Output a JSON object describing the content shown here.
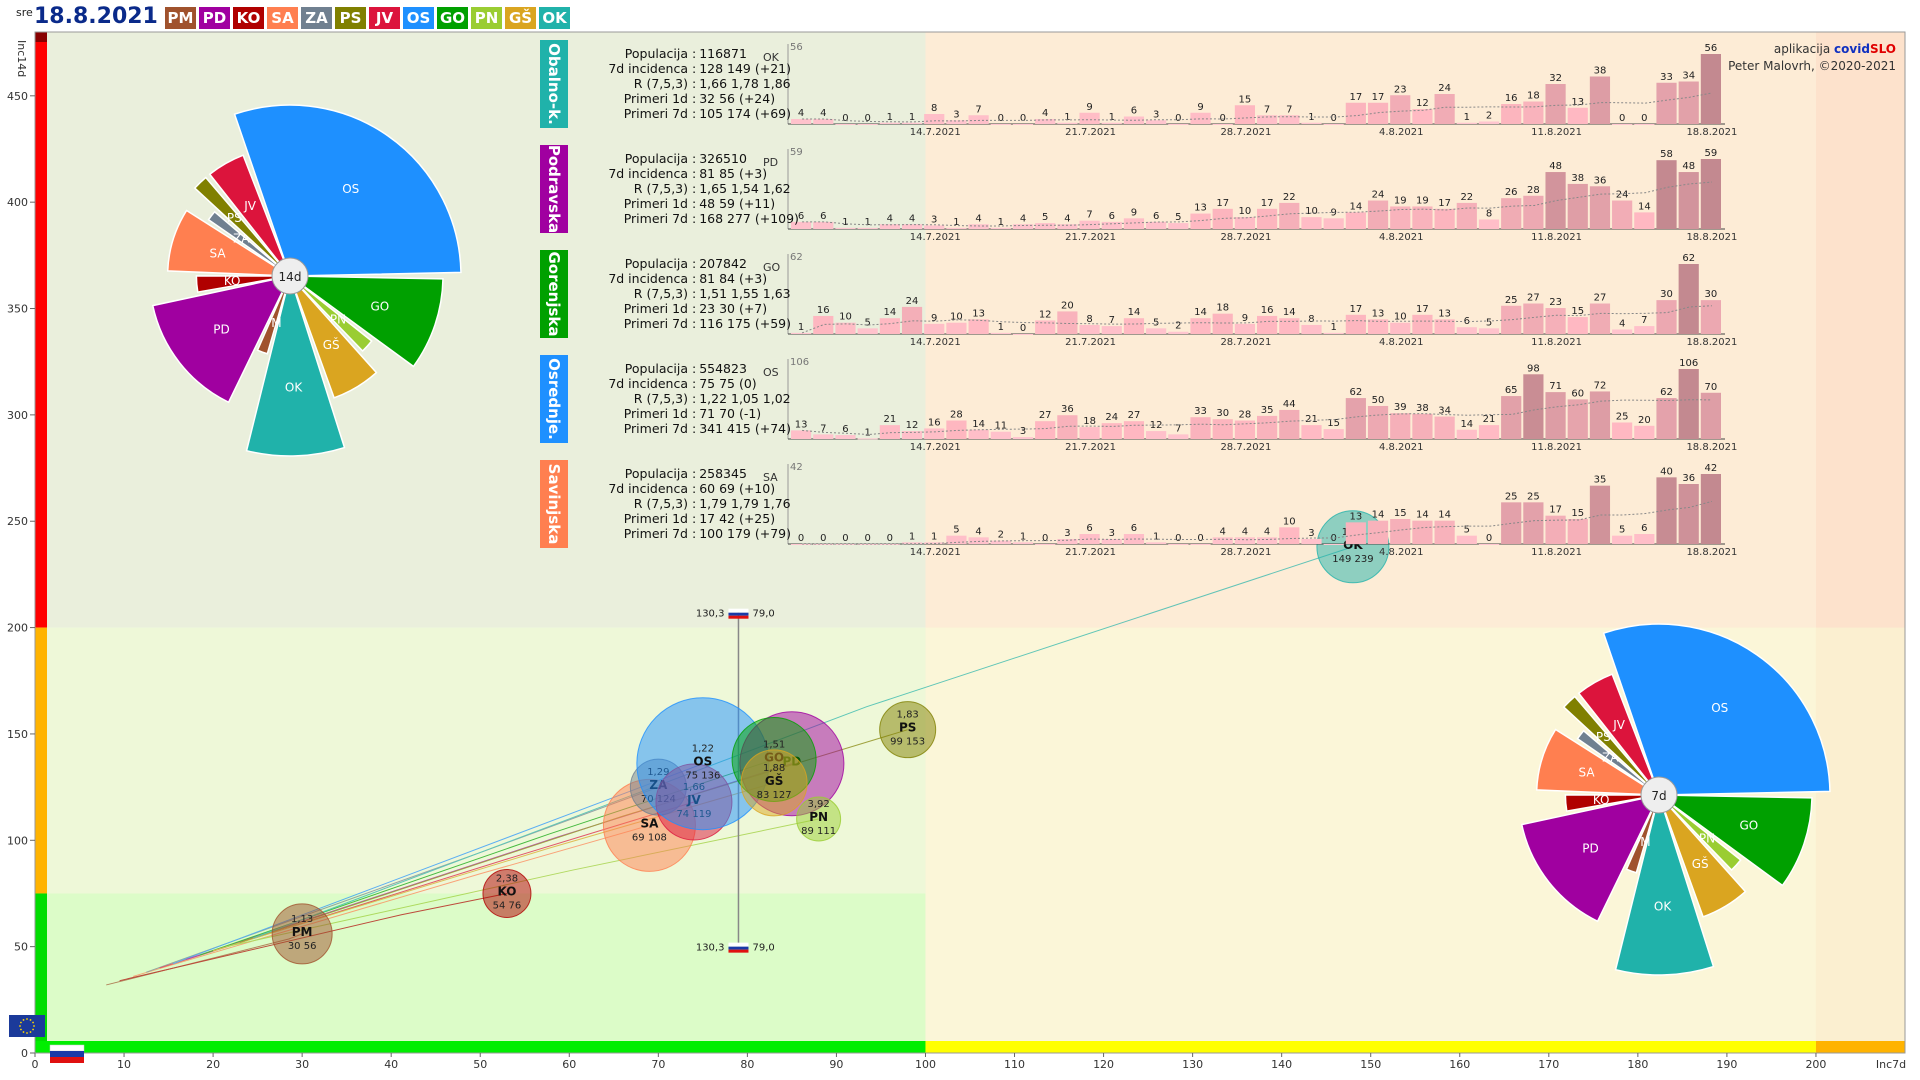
{
  "header": {
    "day_of_week": "sre",
    "date": "18.8.2021",
    "badges": [
      {
        "code": "PM",
        "color": "#a0522d"
      },
      {
        "code": "PD",
        "color": "#a000a0"
      },
      {
        "code": "KO",
        "color": "#b00000"
      },
      {
        "code": "SA",
        "color": "#ff7f50"
      },
      {
        "code": "ZA",
        "color": "#708090"
      },
      {
        "code": "PS",
        "color": "#808000"
      },
      {
        "code": "JV",
        "color": "#dc143c"
      },
      {
        "code": "OS",
        "color": "#1e90ff"
      },
      {
        "code": "GO",
        "color": "#00a000"
      },
      {
        "code": "PN",
        "color": "#9acd32"
      },
      {
        "code": "GŠ",
        "color": "#daa520"
      },
      {
        "code": "OK",
        "color": "#20b2aa"
      }
    ]
  },
  "credit": {
    "app_prefix": "aplikacija",
    "app_name_a": "covid",
    "app_name_b": "SLO",
    "author": "Peter Malovrh, ©2020-2021"
  },
  "chart_data": [
    {
      "type": "scatter",
      "title": "",
      "xlabel": "Inc7d",
      "ylabel": "Inc14d",
      "xlim": [
        0,
        210
      ],
      "ylim": [
        0,
        480
      ],
      "xticks": [
        0,
        10,
        20,
        30,
        40,
        50,
        60,
        70,
        80,
        90,
        100,
        110,
        120,
        130,
        140,
        150,
        160,
        170,
        180,
        190,
        200
      ],
      "yticks": [
        0,
        50,
        100,
        150,
        200,
        250,
        300,
        350,
        400,
        450
      ],
      "zone_colors": {
        "green": "#00ff00",
        "yellow": "#ffff00",
        "orange": "#ffb300",
        "red": "#ff0000"
      },
      "x_zones": [
        [
          0,
          100,
          "green"
        ],
        [
          100,
          200,
          "yellow"
        ],
        [
          200,
          210,
          "orange"
        ]
      ],
      "y_zones": [
        [
          0,
          75,
          "green"
        ],
        [
          75,
          200,
          "orange"
        ],
        [
          200,
          480,
          "red"
        ]
      ],
      "reference": {
        "label_left": "130,3",
        "label_right": "79,0",
        "x": 79,
        "y_low": 50,
        "y_high": 207
      },
      "bubbles": [
        {
          "code": "PM",
          "r_value": "1,13",
          "inc7": 30,
          "inc14": 56,
          "label": "30 56",
          "x": 30,
          "y": 56,
          "size": 30,
          "color": "#a0522d"
        },
        {
          "code": "KO",
          "r_value": "2,38",
          "inc7": 54,
          "inc14": 76,
          "label": "54 76",
          "x": 53,
          "y": 75,
          "size": 24,
          "color": "#b00000"
        },
        {
          "code": "SA",
          "r_value": "",
          "inc7": 69,
          "inc14": 108,
          "label": "69 108",
          "x": 69,
          "y": 107,
          "size": 46,
          "color": "#ff7f50"
        },
        {
          "code": "ZA",
          "r_value": "1,29",
          "inc7": 70,
          "inc14": 124,
          "label": "70 124",
          "x": 70,
          "y": 125,
          "size": 28,
          "color": "#708090"
        },
        {
          "code": "JV",
          "r_value": "1,66",
          "inc7": 74,
          "inc14": 119,
          "label": "74 119",
          "x": 74,
          "y": 118,
          "size": 38,
          "color": "#dc143c"
        },
        {
          "code": "OS",
          "r_value": "1,22",
          "inc7": 75,
          "inc14": 136,
          "label": "75 136",
          "x": 75,
          "y": 136,
          "size": 66,
          "color": "#1e90ff"
        },
        {
          "code": "PD",
          "r_value": "",
          "inc7": 85,
          "inc14": 136,
          "label": "",
          "x": 85,
          "y": 136,
          "size": 52,
          "color": "#a000a0"
        },
        {
          "code": "GO",
          "r_value": "1,51",
          "inc7": 81,
          "inc14": 140,
          "label": "",
          "x": 83,
          "y": 138,
          "size": 42,
          "color": "#00a000"
        },
        {
          "code": "GŠ",
          "r_value": "1,88",
          "inc7": 83,
          "inc14": 127,
          "label": "83 127",
          "x": 83,
          "y": 127,
          "size": 33,
          "color": "#daa520"
        },
        {
          "code": "PN",
          "r_value": "3,92",
          "inc7": 89,
          "inc14": 111,
          "label": "89 111",
          "x": 88,
          "y": 110,
          "size": 22,
          "color": "#9acd32"
        },
        {
          "code": "PS",
          "r_value": "1,83",
          "inc7": 99,
          "inc14": 153,
          "label": "99 153",
          "x": 98,
          "y": 152,
          "size": 28,
          "color": "#808000"
        },
        {
          "code": "OK",
          "r_value": "1,66",
          "inc7": 149,
          "inc14": 239,
          "label": "149 239",
          "x": 148,
          "y": 238,
          "size": 36,
          "color": "#20b2aa"
        }
      ]
    },
    {
      "type": "pie",
      "title": "14d",
      "slices": [
        {
          "code": "OS",
          "value": 341,
          "color": "#1e90ff"
        },
        {
          "code": "GO",
          "value": 116,
          "color": "#00a000"
        },
        {
          "code": "PN",
          "value": 30,
          "color": "#9acd32"
        },
        {
          "code": "GŠ",
          "value": 75,
          "color": "#daa520"
        },
        {
          "code": "OK",
          "value": 105,
          "color": "#20b2aa"
        },
        {
          "code": "PM",
          "value": 30,
          "color": "#a0522d"
        },
        {
          "code": "PD",
          "value": 168,
          "color": "#a000a0"
        },
        {
          "code": "KO",
          "value": 38,
          "color": "#b00000"
        },
        {
          "code": "SA",
          "value": 100,
          "color": "#ff7f50"
        },
        {
          "code": "ZA",
          "value": 25,
          "color": "#708090"
        },
        {
          "code": "PS",
          "value": 28,
          "color": "#808000"
        },
        {
          "code": "JV",
          "value": 60,
          "color": "#dc143c"
        }
      ],
      "radius_index": [
        0.95,
        0.85,
        0.58,
        0.72,
        1.0,
        0.45,
        0.78,
        0.52,
        0.68,
        0.55,
        0.72,
        0.72
      ]
    },
    {
      "type": "pie",
      "title": "7d",
      "slices": [
        {
          "code": "OS",
          "value": 341,
          "color": "#1e90ff"
        },
        {
          "code": "GO",
          "value": 116,
          "color": "#00a000"
        },
        {
          "code": "PN",
          "value": 30,
          "color": "#9acd32"
        },
        {
          "code": "GŠ",
          "value": 75,
          "color": "#daa520"
        },
        {
          "code": "OK",
          "value": 105,
          "color": "#20b2aa"
        },
        {
          "code": "PM",
          "value": 30,
          "color": "#a0522d"
        },
        {
          "code": "PD",
          "value": 168,
          "color": "#a000a0"
        },
        {
          "code": "KO",
          "value": 38,
          "color": "#b00000"
        },
        {
          "code": "SA",
          "value": 100,
          "color": "#ff7f50"
        },
        {
          "code": "ZA",
          "value": 25,
          "color": "#708090"
        },
        {
          "code": "PS",
          "value": 28,
          "color": "#808000"
        },
        {
          "code": "JV",
          "value": 60,
          "color": "#dc143c"
        }
      ],
      "radius_index": [
        0.95,
        0.85,
        0.58,
        0.72,
        1.0,
        0.45,
        0.78,
        0.52,
        0.68,
        0.55,
        0.72,
        0.72
      ]
    },
    {
      "type": "bar",
      "region": "Obalno-k.",
      "code": "OK",
      "color": "#20b2aa",
      "ymax_label": "56",
      "date_labels": [
        "14.7.2021",
        "21.7.2021",
        "28.7.2021",
        "4.8.2021",
        "11.8.2021",
        "18.8.2021"
      ],
      "values": [
        4,
        4,
        0,
        0,
        1,
        1,
        8,
        3,
        7,
        0,
        0,
        4,
        1,
        9,
        1,
        6,
        3,
        0,
        9,
        0,
        15,
        7,
        7,
        1,
        0,
        17,
        17,
        23,
        12,
        24,
        1,
        2,
        16,
        18,
        32,
        13,
        38,
        0,
        0,
        33,
        34,
        56
      ]
    },
    {
      "type": "bar",
      "region": "Podravska",
      "code": "PD",
      "color": "#a000a0",
      "ymax_label": "59",
      "date_labels": [
        "14.7.2021",
        "21.7.2021",
        "28.7.2021",
        "4.8.2021",
        "11.8.2021",
        "18.8.2021"
      ],
      "values": [
        6,
        6,
        1,
        1,
        4,
        4,
        3,
        1,
        4,
        1,
        4,
        5,
        4,
        7,
        6,
        9,
        6,
        5,
        13,
        17,
        10,
        17,
        22,
        10,
        9,
        14,
        24,
        19,
        19,
        17,
        22,
        8,
        26,
        28,
        48,
        38,
        36,
        24,
        14,
        58,
        48,
        59
      ]
    },
    {
      "type": "bar",
      "region": "Gorenjska",
      "code": "GO",
      "color": "#00a000",
      "ymax_label": "62",
      "date_labels": [
        "14.7.2021",
        "21.7.2021",
        "28.7.2021",
        "4.8.2021",
        "11.8.2021",
        "18.8.2021"
      ],
      "values": [
        1,
        16,
        10,
        5,
        14,
        24,
        9,
        10,
        13,
        1,
        0,
        12,
        20,
        8,
        7,
        14,
        5,
        2,
        14,
        18,
        9,
        16,
        14,
        8,
        1,
        17,
        13,
        10,
        17,
        13,
        6,
        5,
        25,
        27,
        23,
        15,
        27,
        4,
        7,
        30,
        62,
        30
      ]
    },
    {
      "type": "bar",
      "region": "Osrednje.",
      "code": "OS",
      "color": "#1e90ff",
      "ymax_label": "106",
      "date_labels": [
        "14.7.2021",
        "21.7.2021",
        "28.7.2021",
        "4.8.2021",
        "11.8.2021",
        "18.8.2021"
      ],
      "values": [
        13,
        7,
        6,
        1,
        21,
        12,
        16,
        28,
        14,
        11,
        3,
        27,
        36,
        18,
        24,
        27,
        12,
        7,
        33,
        30,
        28,
        35,
        44,
        21,
        15,
        62,
        50,
        39,
        38,
        34,
        14,
        21,
        65,
        98,
        71,
        60,
        72,
        25,
        20,
        62,
        106,
        70
      ]
    },
    {
      "type": "bar",
      "region": "Savinjska",
      "code": "SA",
      "color": "#ff7f50",
      "ymax_label": "42",
      "date_labels": [
        "14.7.2021",
        "21.7.2021",
        "28.7.2021",
        "4.8.2021",
        "11.8.2021",
        "18.8.2021"
      ],
      "values": [
        0,
        0,
        0,
        0,
        0,
        1,
        1,
        5,
        4,
        2,
        1,
        0,
        3,
        6,
        3,
        6,
        1,
        0,
        0,
        4,
        4,
        4,
        10,
        3,
        0,
        13,
        14,
        15,
        14,
        14,
        5,
        0,
        25,
        25,
        17,
        15,
        35,
        5,
        6,
        40,
        36,
        42
      ]
    }
  ],
  "region_stats": [
    {
      "name": "Obalno-k.",
      "color": "#20b2aa",
      "populacija": "116871",
      "incidenca": "128 149 (+21)",
      "r": "1,66 1,78 1,86",
      "primeri_1d": "32 56 (+24)",
      "primeri_7d": "105 174 (+69)"
    },
    {
      "name": "Podravska",
      "color": "#a000a0",
      "populacija": "326510",
      "incidenca": "81 85 (+3)",
      "r": "1,65 1,54 1,62",
      "primeri_1d": "48 59 (+11)",
      "primeri_7d": "168 277 (+109)"
    },
    {
      "name": "Gorenjska",
      "color": "#00a000",
      "populacija": "207842",
      "incidenca": "81 84 (+3)",
      "r": "1,51 1,55 1,63",
      "primeri_1d": "23 30 (+7)",
      "primeri_7d": "116 175 (+59)"
    },
    {
      "name": "Osrednje.",
      "color": "#1e90ff",
      "populacija": "554823",
      "incidenca": "75 75 (0)",
      "r": "1,22 1,05 1,02",
      "primeri_1d": "71 70 (-1)",
      "primeri_7d": "341 415 (+74)"
    },
    {
      "name": "Savinjska",
      "color": "#ff7f50",
      "populacija": "258345",
      "incidenca": "60 69 (+10)",
      "r": "1,79 1,79 1,76",
      "primeri_1d": "17 42 (+25)",
      "primeri_7d": "100 179 (+79)"
    }
  ],
  "stat_labels": {
    "populacija": "Populacija",
    "incidenca": "7d incidenca",
    "r": "R (7,5,3)",
    "primeri_1d": "Primeri 1d",
    "primeri_7d": "Primeri 7d",
    "sep": ":"
  }
}
